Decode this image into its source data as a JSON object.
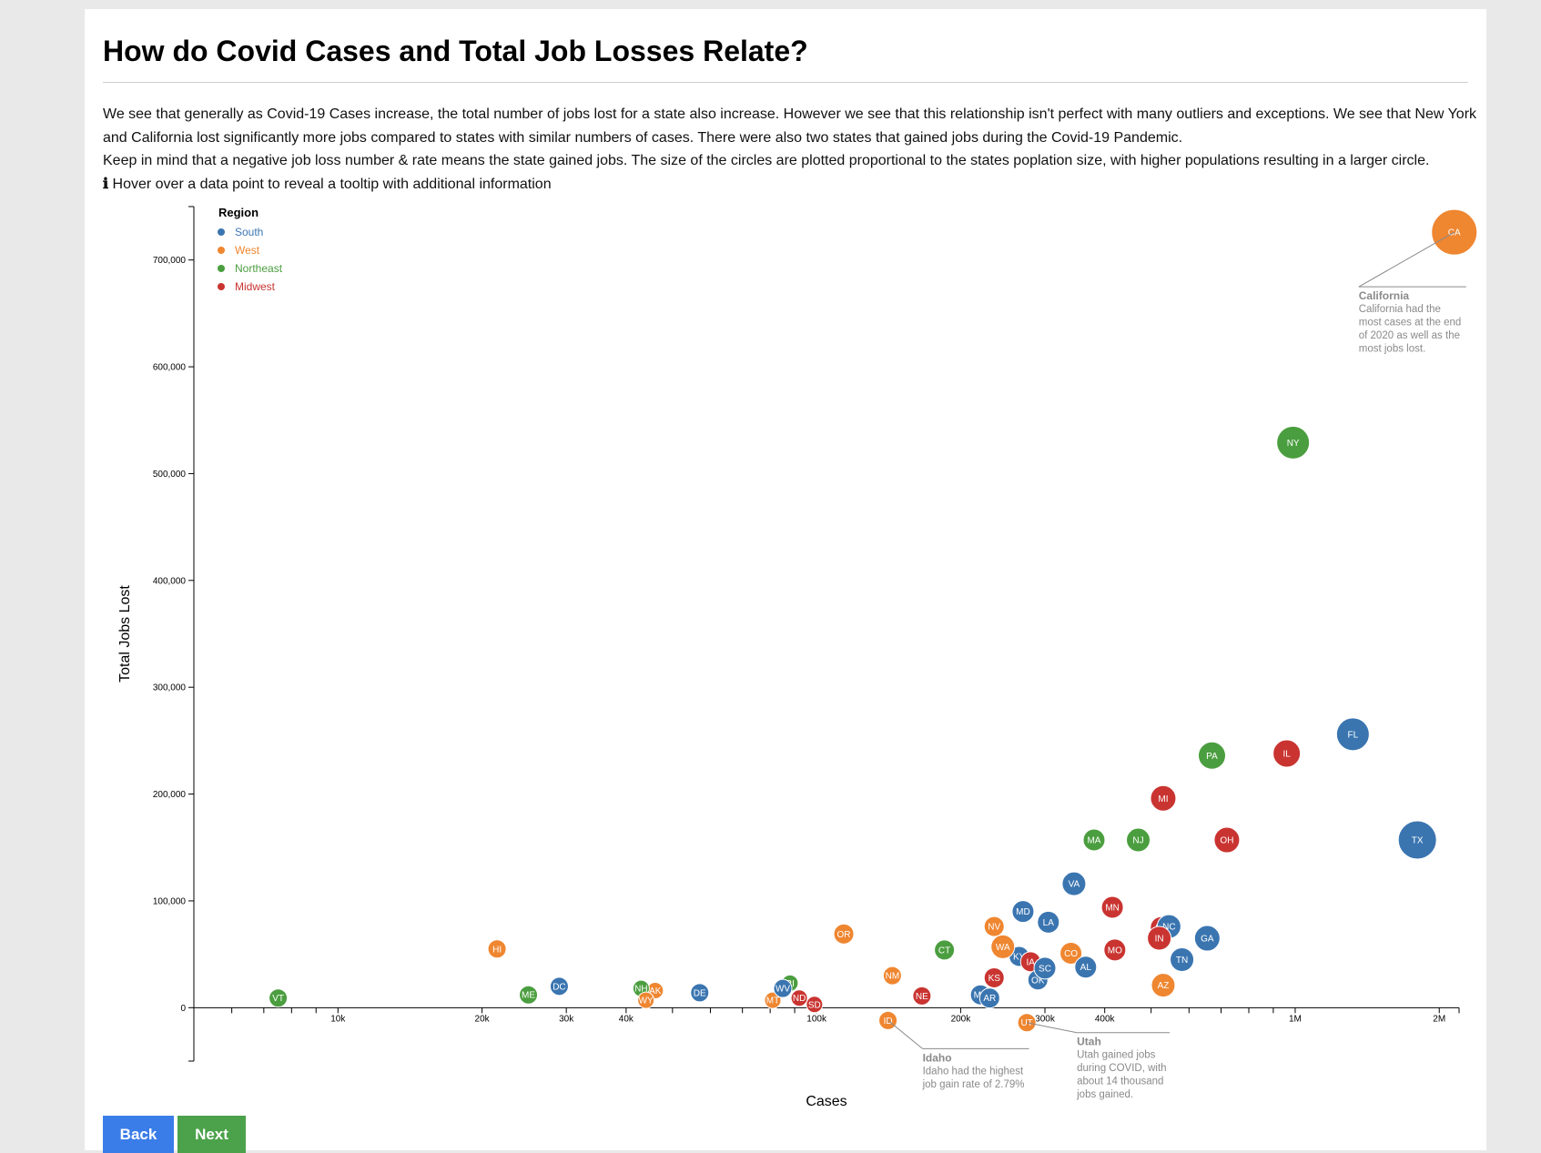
{
  "page": {
    "title": "How do Covid Cases and Total Job Losses Relate?",
    "paragraph1": "We see that generally as Covid-19 Cases increase, the total number of jobs lost for a state also increase. However we see that this relationship isn't perfect with many outliers and exceptions. We see that New York and California lost significantly more jobs compared to states with similar numbers of cases. There were also two states that gained jobs during the Covid-19 Pandemic.",
    "paragraph2": "Keep in mind that a negative job loss number & rate means the state gained jobs. The size of the circles are plotted proportional to the states poplation size, with higher populations resulting in a larger circle.",
    "info_icon": "ℹ",
    "hint": "Hover over a data point to reveal a tooltip with additional information",
    "back_label": "Back",
    "next_label": "Next"
  },
  "chart_data": {
    "type": "scatter",
    "xlabel": "Cases",
    "ylabel": "Total Jobs Lost",
    "x_scale": "log",
    "xlim": [
      5000,
      2200000
    ],
    "ylim": [
      -50000,
      750000
    ],
    "x_ticks": [
      {
        "v": 10000,
        "label": "10k"
      },
      {
        "v": 20000,
        "label": "20k"
      },
      {
        "v": 30000,
        "label": "30k"
      },
      {
        "v": 40000,
        "label": "40k"
      },
      {
        "v": 100000,
        "label": "100k"
      },
      {
        "v": 200000,
        "label": "200k"
      },
      {
        "v": 300000,
        "label": "300k"
      },
      {
        "v": 400000,
        "label": "400k"
      },
      {
        "v": 1000000,
        "label": "1M"
      },
      {
        "v": 2000000,
        "label": "2M"
      }
    ],
    "x_minor_ticks": [
      6000,
      7000,
      8000,
      9000,
      50000,
      60000,
      70000,
      80000,
      90000,
      500000,
      600000,
      700000,
      800000,
      900000
    ],
    "y_ticks": [
      {
        "v": 0,
        "label": "0"
      },
      {
        "v": 100000,
        "label": "100,000"
      },
      {
        "v": 200000,
        "label": "200,000"
      },
      {
        "v": 300000,
        "label": "300,000"
      },
      {
        "v": 400000,
        "label": "400,000"
      },
      {
        "v": 500000,
        "label": "500,000"
      },
      {
        "v": 600000,
        "label": "600,000"
      },
      {
        "v": 700000,
        "label": "700,000"
      }
    ],
    "legend": {
      "title": "Region",
      "placement": "top-left",
      "items": [
        {
          "name": "South",
          "color": "#3a75b0"
        },
        {
          "name": "West",
          "color": "#ef8630"
        },
        {
          "name": "Northeast",
          "color": "#4b9e3f"
        },
        {
          "name": "Midwest",
          "color": "#c93431"
        }
      ]
    },
    "points": [
      {
        "state": "CA",
        "region": "West",
        "cases": 2150000,
        "jobs_lost": 726000,
        "r": 25
      },
      {
        "state": "NY",
        "region": "Northeast",
        "cases": 990000,
        "jobs_lost": 529000,
        "r": 18
      },
      {
        "state": "TX",
        "region": "South",
        "cases": 1800000,
        "jobs_lost": 157000,
        "r": 21
      },
      {
        "state": "FL",
        "region": "South",
        "cases": 1320000,
        "jobs_lost": 256000,
        "r": 18
      },
      {
        "state": "IL",
        "region": "Midwest",
        "cases": 960000,
        "jobs_lost": 238000,
        "r": 15
      },
      {
        "state": "PA",
        "region": "Northeast",
        "cases": 670000,
        "jobs_lost": 236000,
        "r": 15
      },
      {
        "state": "MI",
        "region": "Midwest",
        "cases": 530000,
        "jobs_lost": 196000,
        "r": 14
      },
      {
        "state": "OH",
        "region": "Midwest",
        "cases": 720000,
        "jobs_lost": 157000,
        "r": 14
      },
      {
        "state": "NJ",
        "region": "Northeast",
        "cases": 470000,
        "jobs_lost": 157000,
        "r": 13
      },
      {
        "state": "MA",
        "region": "Northeast",
        "cases": 380000,
        "jobs_lost": 157000,
        "r": 12
      },
      {
        "state": "VA",
        "region": "South",
        "cases": 345000,
        "jobs_lost": 116000,
        "r": 13
      },
      {
        "state": "MN",
        "region": "Midwest",
        "cases": 415000,
        "jobs_lost": 94000,
        "r": 12
      },
      {
        "state": "MD",
        "region": "South",
        "cases": 270000,
        "jobs_lost": 90000,
        "r": 12
      },
      {
        "state": "LA",
        "region": "South",
        "cases": 305000,
        "jobs_lost": 80000,
        "r": 12
      },
      {
        "state": "NC",
        "region": "South",
        "cases": 545000,
        "jobs_lost": 76000,
        "r": 13
      },
      {
        "state": "WI",
        "region": "Midwest",
        "cases": 525000,
        "jobs_lost": 75000,
        "r": 12
      },
      {
        "state": "IN",
        "region": "Midwest",
        "cases": 520000,
        "jobs_lost": 65000,
        "r": 13
      },
      {
        "state": "GA",
        "region": "South",
        "cases": 655000,
        "jobs_lost": 65000,
        "r": 14
      },
      {
        "state": "NV",
        "region": "West",
        "cases": 235000,
        "jobs_lost": 76000,
        "r": 11
      },
      {
        "state": "MO",
        "region": "Midwest",
        "cases": 420000,
        "jobs_lost": 54000,
        "r": 12
      },
      {
        "state": "WA",
        "region": "West",
        "cases": 245000,
        "jobs_lost": 57000,
        "r": 13
      },
      {
        "state": "CO",
        "region": "West",
        "cases": 340000,
        "jobs_lost": 51000,
        "r": 12
      },
      {
        "state": "TN",
        "region": "South",
        "cases": 580000,
        "jobs_lost": 45000,
        "r": 13
      },
      {
        "state": "KY",
        "region": "South",
        "cases": 265000,
        "jobs_lost": 48000,
        "r": 11
      },
      {
        "state": "IA",
        "region": "Midwest",
        "cases": 280000,
        "jobs_lost": 43000,
        "r": 11
      },
      {
        "state": "AL",
        "region": "South",
        "cases": 365000,
        "jobs_lost": 38000,
        "r": 12
      },
      {
        "state": "SC",
        "region": "South",
        "cases": 300000,
        "jobs_lost": 37000,
        "r": 12
      },
      {
        "state": "OK",
        "region": "South",
        "cases": 290000,
        "jobs_lost": 26000,
        "r": 11
      },
      {
        "state": "KS",
        "region": "Midwest",
        "cases": 235000,
        "jobs_lost": 28000,
        "r": 11
      },
      {
        "state": "AZ",
        "region": "West",
        "cases": 530000,
        "jobs_lost": 21000,
        "r": 13
      },
      {
        "state": "MS",
        "region": "South",
        "cases": 220000,
        "jobs_lost": 12000,
        "r": 11
      },
      {
        "state": "AR",
        "region": "South",
        "cases": 230000,
        "jobs_lost": 9000,
        "r": 11
      },
      {
        "state": "CT",
        "region": "Northeast",
        "cases": 185000,
        "jobs_lost": 54000,
        "r": 11
      },
      {
        "state": "OR",
        "region": "West",
        "cases": 114000,
        "jobs_lost": 69000,
        "r": 11
      },
      {
        "state": "NM",
        "region": "West",
        "cases": 144000,
        "jobs_lost": 30000,
        "r": 10
      },
      {
        "state": "NE",
        "region": "Midwest",
        "cases": 166000,
        "jobs_lost": 11000,
        "r": 10
      },
      {
        "state": "UT",
        "region": "West",
        "cases": 275000,
        "jobs_lost": -14000,
        "r": 10
      },
      {
        "state": "ID",
        "region": "West",
        "cases": 141000,
        "jobs_lost": -12000,
        "r": 10
      },
      {
        "state": "WV",
        "region": "South",
        "cases": 85000,
        "jobs_lost": 18000,
        "r": 10
      },
      {
        "state": "RI",
        "region": "Northeast",
        "cases": 88000,
        "jobs_lost": 23000,
        "r": 9
      },
      {
        "state": "ND",
        "region": "Midwest",
        "cases": 92000,
        "jobs_lost": 9000,
        "r": 9
      },
      {
        "state": "SD",
        "region": "Midwest",
        "cases": 99000,
        "jobs_lost": 3000,
        "r": 9
      },
      {
        "state": "MT",
        "region": "West",
        "cases": 81000,
        "jobs_lost": 7000,
        "r": 9
      },
      {
        "state": "DE",
        "region": "South",
        "cases": 57000,
        "jobs_lost": 14000,
        "r": 10
      },
      {
        "state": "AK",
        "region": "West",
        "cases": 46000,
        "jobs_lost": 16000,
        "r": 9
      },
      {
        "state": "NH",
        "region": "Northeast",
        "cases": 43000,
        "jobs_lost": 18000,
        "r": 9
      },
      {
        "state": "WY",
        "region": "West",
        "cases": 44000,
        "jobs_lost": 7000,
        "r": 9
      },
      {
        "state": "DC",
        "region": "South",
        "cases": 29000,
        "jobs_lost": 20000,
        "r": 10
      },
      {
        "state": "ME",
        "region": "Northeast",
        "cases": 25000,
        "jobs_lost": 12000,
        "r": 10
      },
      {
        "state": "HI",
        "region": "West",
        "cases": 21500,
        "jobs_lost": 55000,
        "r": 10
      },
      {
        "state": "VT",
        "region": "Northeast",
        "cases": 7500,
        "jobs_lost": 9000,
        "r": 10
      }
    ],
    "annotations": [
      {
        "state": "CA",
        "title": "California",
        "lines": [
          "California had the",
          "most cases at the end",
          "of 2020 as well as the",
          "most jobs lost."
        ]
      },
      {
        "state": "ID",
        "title": "Idaho",
        "lines": [
          "Idaho had the highest",
          "job gain rate of 2.79%"
        ]
      },
      {
        "state": "UT",
        "title": "Utah",
        "lines": [
          "Utah gained jobs",
          "during COVID, with",
          "about 14 thousand",
          "jobs gained."
        ]
      }
    ]
  }
}
